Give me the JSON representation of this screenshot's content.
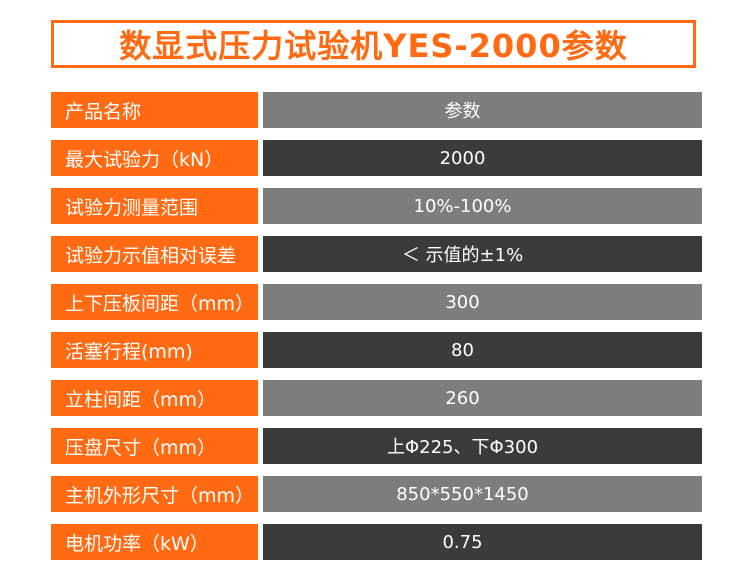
{
  "title": "数显式压力试验机YES-2000参数",
  "rows": [
    {
      "label": "产品名称",
      "value": "参数"
    },
    {
      "label": "最大试验力（kN）",
      "value": "2000"
    },
    {
      "label": "试验力测量范围",
      "value": "10%-100%"
    },
    {
      "label": "试验力示值相对误差",
      "value": "＜ 示值的±1%"
    },
    {
      "label": "上下压板间距（mm）",
      "value": "300"
    },
    {
      "label": "活塞行程(mm)",
      "value": "80"
    },
    {
      "label": "立柱间距（mm）",
      "value": "260"
    },
    {
      "label": "压盘尺寸（mm）",
      "value": "上Φ225、下Φ300"
    },
    {
      "label": "主机外形尺寸（mm）",
      "value": "850*550*1450"
    },
    {
      "label": "电机功率（kW）",
      "value": "0.75"
    }
  ],
  "colors": {
    "accent": "#ff6a12",
    "row_light": "#7d7d7d",
    "row_dark": "#3b3b3b"
  }
}
